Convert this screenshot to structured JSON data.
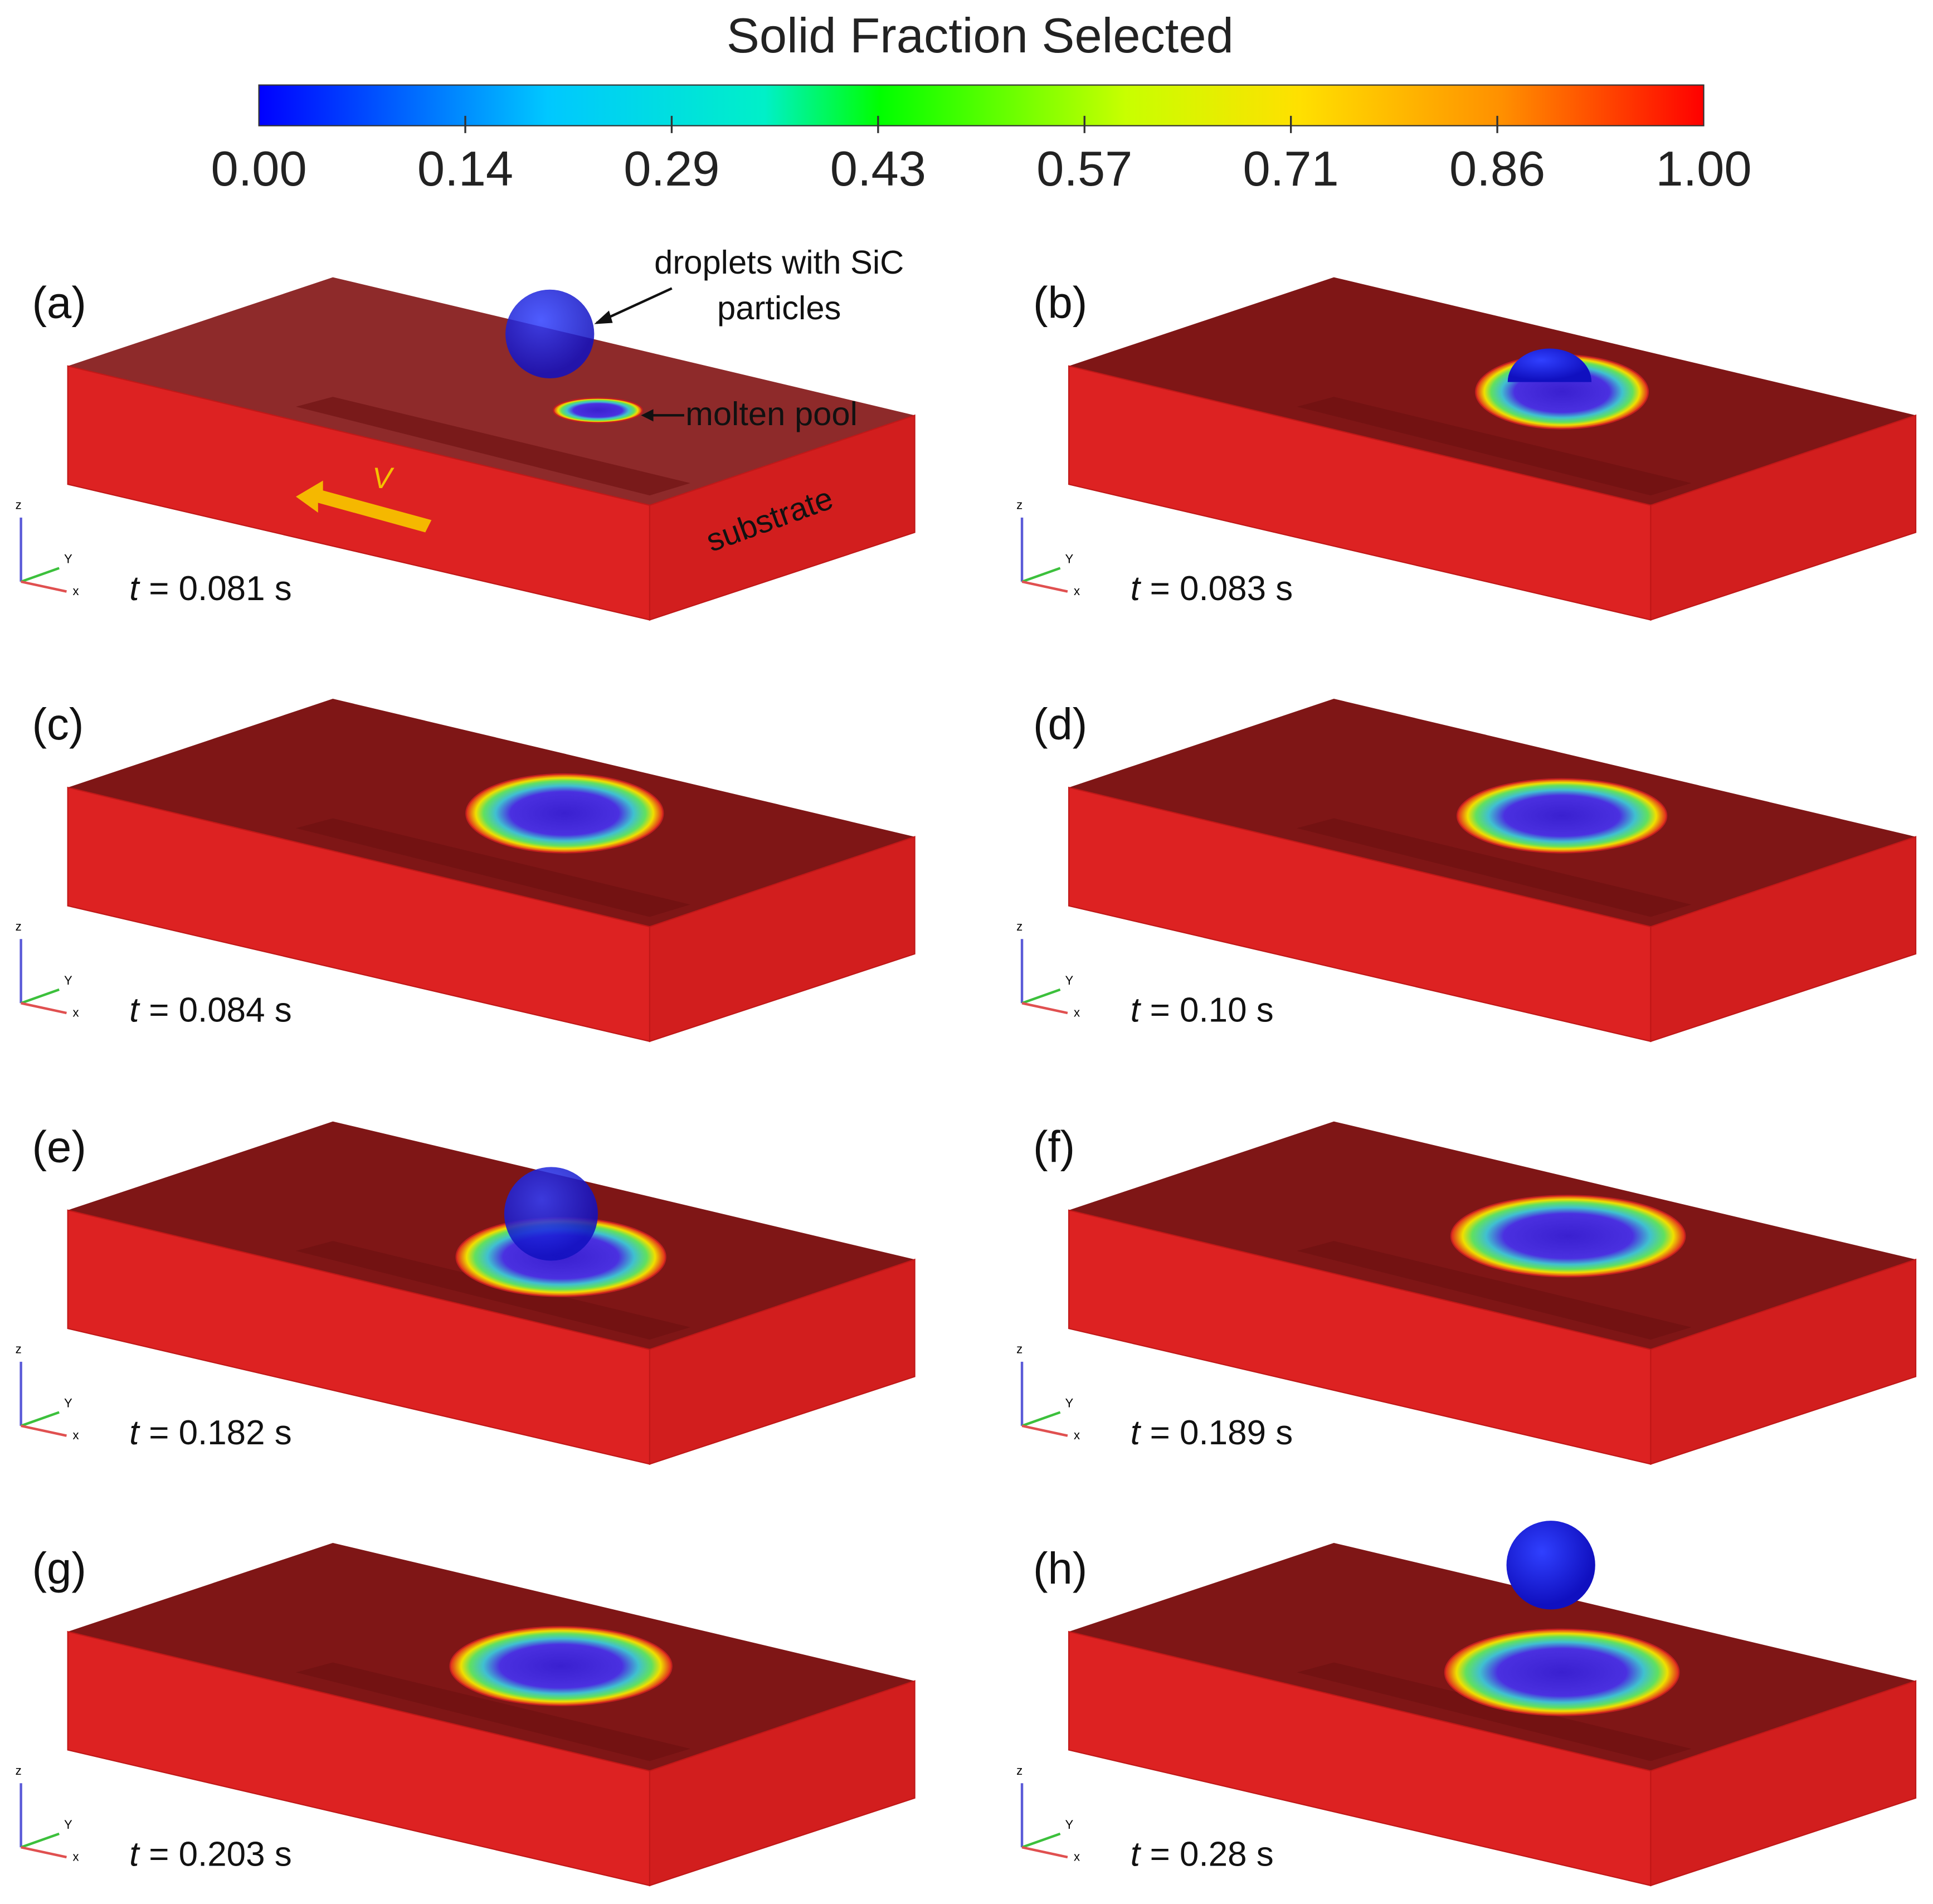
{
  "colorbar": {
    "title": "Solid Fraction Selected",
    "range": [
      0,
      1
    ],
    "ticks": [
      {
        "value": 0,
        "label": "0.00"
      },
      {
        "value": 0.142857,
        "label": "0.14"
      },
      {
        "value": 0.285714,
        "label": "0.29"
      },
      {
        "value": 0.428571,
        "label": "0.43"
      },
      {
        "value": 0.571429,
        "label": "0.57"
      },
      {
        "value": 0.714286,
        "label": "0.71"
      },
      {
        "value": 0.857143,
        "label": "0.86"
      },
      {
        "value": 1,
        "label": "1.00"
      }
    ]
  },
  "triad": {
    "z": "z",
    "y": "Y",
    "x": "x"
  },
  "annotations": {
    "droplet_line1": "droplets with SiC",
    "droplet_line2": "particles",
    "molten_pool": "molten pool",
    "substrate": "substrate",
    "velocity": "V"
  },
  "panels": [
    {
      "label": "(a)",
      "time_symbol": "t",
      "time": "= 0.081 s"
    },
    {
      "label": "(b)",
      "time_symbol": "t",
      "time": "= 0.083 s"
    },
    {
      "label": "(c)",
      "time_symbol": "t",
      "time": "= 0.084 s"
    },
    {
      "label": "(d)",
      "time_symbol": "t",
      "time": "= 0.10 s"
    },
    {
      "label": "(e)",
      "time_symbol": "t",
      "time": "= 0.182 s"
    },
    {
      "label": "(f)",
      "time_symbol": "t",
      "time": "= 0.189 s"
    },
    {
      "label": "(g)",
      "time_symbol": "t",
      "time": "= 0.203 s"
    },
    {
      "label": "(h)",
      "time_symbol": "t",
      "time": "= 0.28 s"
    }
  ]
}
